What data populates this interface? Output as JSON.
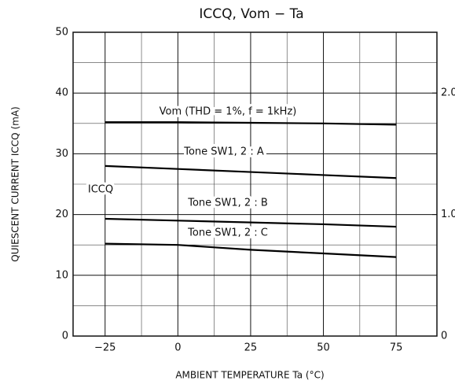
{
  "chart_data": {
    "type": "line",
    "title": "ICCQ, Vom − Ta",
    "xlabel": "AMBIENT TEMPERATURE   Ta   (°C)",
    "ylabel": "QUIESCENT CURRENT   ICCQ   (mA)",
    "annotations": [
      "ICCQ"
    ],
    "x": [
      -25,
      0,
      25,
      50,
      75
    ],
    "series": [
      {
        "name": "Vom (THD = 1%, f = 1kHz)",
        "color": "#000000",
        "axis": "y2",
        "values": [
          1.76,
          1.76,
          1.755,
          1.75,
          1.74
        ]
      },
      {
        "name": "Tone SW1, 2 : A",
        "color": "#000000",
        "values": [
          28,
          27.5,
          27,
          26.5,
          26
        ]
      },
      {
        "name": "Tone SW1, 2 : B",
        "color": "#000000",
        "values": [
          19.3,
          19.0,
          18.7,
          18.4,
          18
        ]
      },
      {
        "name": "Tone SW1, 2 : C",
        "color": "#000000",
        "values": [
          15.2,
          15.0,
          14.2,
          13.6,
          13
        ]
      }
    ],
    "xlim": [
      -36,
      89
    ],
    "xticks": [
      {
        "value": -25,
        "label": "−25"
      },
      0,
      25,
      50,
      75
    ],
    "xminorticks": [
      -12.5,
      12.5,
      37.5,
      62.5
    ],
    "ylim": [
      0,
      50
    ],
    "yticks": [
      0,
      10,
      20,
      30,
      40,
      50
    ],
    "yminorticks": [
      5,
      15,
      25,
      35,
      45
    ],
    "y2lim": [
      0,
      2.5
    ],
    "y2ticks": [
      0,
      {
        "value": 1,
        "label": "1.0"
      },
      {
        "value": 2,
        "label": "2.0"
      }
    ],
    "grid": true
  }
}
